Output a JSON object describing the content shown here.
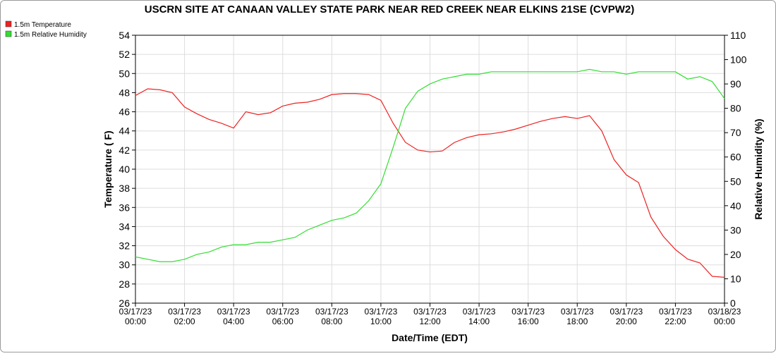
{
  "chart_data": {
    "type": "line",
    "title": "USCRN SITE AT CANAAN VALLEY STATE PARK NEAR RED CREEK NEAR ELKINS 21SE (CVPW2)",
    "x_label": "Date/Time (EDT)",
    "y_label": "Temperature ( F)",
    "y2_label": "Relative Humidity (%)",
    "x": [
      "03/17/23 00:00",
      "03/17/23 00:30",
      "03/17/23 01:00",
      "03/17/23 01:30",
      "03/17/23 02:00",
      "03/17/23 02:30",
      "03/17/23 03:00",
      "03/17/23 03:30",
      "03/17/23 04:00",
      "03/17/23 04:30",
      "03/17/23 05:00",
      "03/17/23 05:30",
      "03/17/23 06:00",
      "03/17/23 06:30",
      "03/17/23 07:00",
      "03/17/23 07:30",
      "03/17/23 08:00",
      "03/17/23 08:30",
      "03/17/23 09:00",
      "03/17/23 09:30",
      "03/17/23 10:00",
      "03/17/23 10:30",
      "03/17/23 11:00",
      "03/17/23 11:30",
      "03/17/23 12:00",
      "03/17/23 12:30",
      "03/17/23 13:00",
      "03/17/23 13:30",
      "03/17/23 14:00",
      "03/17/23 14:30",
      "03/17/23 15:00",
      "03/17/23 15:30",
      "03/17/23 16:00",
      "03/17/23 16:30",
      "03/17/23 17:00",
      "03/17/23 17:30",
      "03/17/23 18:00",
      "03/17/23 18:30",
      "03/17/23 19:00",
      "03/17/23 19:30",
      "03/17/23 20:00",
      "03/17/23 20:30",
      "03/17/23 21:00",
      "03/17/23 21:30",
      "03/17/23 22:00",
      "03/17/23 22:30",
      "03/17/23 23:00",
      "03/17/23 23:30",
      "03/18/23 00:00"
    ],
    "series": [
      {
        "name": "1.5m Temperature",
        "color": "#ee2222",
        "values": [
          47.7,
          48.4,
          48.3,
          48.0,
          46.5,
          45.8,
          45.2,
          44.8,
          44.3,
          46.0,
          45.7,
          45.9,
          46.6,
          46.9,
          47.0,
          47.3,
          47.8,
          47.9,
          47.9,
          47.8,
          47.2,
          44.8,
          42.8,
          42.0,
          41.8,
          41.9,
          42.8,
          43.3,
          43.6,
          43.7,
          43.9,
          44.2,
          44.6,
          45.0,
          45.3,
          45.5,
          45.3,
          45.6,
          44.0,
          41.0,
          39.4,
          38.6,
          35.0,
          33.0,
          31.6,
          30.6,
          30.2,
          28.8,
          28.7
        ]
      },
      {
        "name": "1.5m Relative Humidity",
        "color": "#33dd33",
        "axis": "y2",
        "values": [
          19,
          18,
          17,
          17,
          18,
          20,
          21,
          23,
          24,
          24,
          25,
          25,
          26,
          27,
          30,
          32,
          34,
          35,
          37,
          42,
          49,
          64,
          80,
          87,
          90,
          92,
          93,
          94,
          94,
          95,
          95,
          95,
          95,
          95,
          95,
          95,
          95,
          96,
          95,
          95,
          94,
          95,
          95,
          95,
          95,
          92,
          93,
          91,
          84
        ]
      }
    ],
    "xlim": [
      "03/17/23 00:00",
      "03/18/23 00:00"
    ],
    "xticks": [
      "03/17/23 00:00",
      "03/17/23 02:00",
      "03/17/23 04:00",
      "03/17/23 06:00",
      "03/17/23 08:00",
      "03/17/23 10:00",
      "03/17/23 12:00",
      "03/17/23 14:00",
      "03/17/23 16:00",
      "03/17/23 18:00",
      "03/17/23 20:00",
      "03/17/23 22:00",
      "03/18/23 00:00"
    ],
    "ylim": [
      26,
      54
    ],
    "yticks": [
      26,
      28,
      30,
      32,
      34,
      36,
      38,
      40,
      42,
      44,
      46,
      48,
      50,
      52,
      54
    ],
    "y2lim": [
      0,
      110
    ],
    "y2ticks": [
      0,
      10,
      20,
      30,
      40,
      50,
      60,
      70,
      80,
      90,
      100,
      110
    ],
    "grid": true,
    "legend": "top-left"
  }
}
